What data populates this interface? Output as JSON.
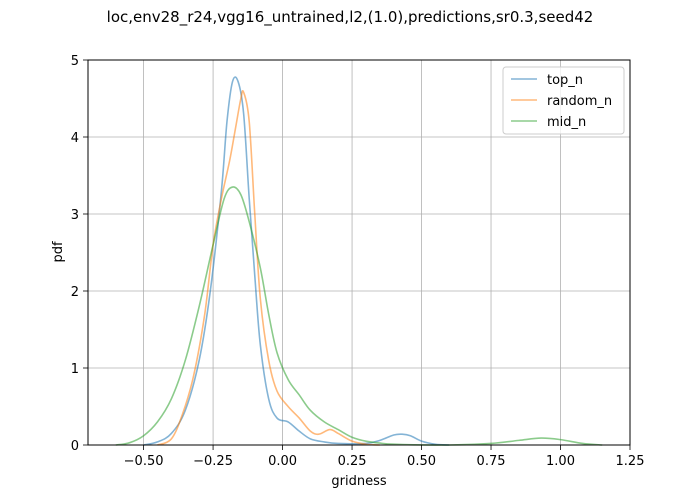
{
  "chart_data": {
    "type": "line",
    "title": "loc,env28_r24,vgg16_untrained,l2,(1.0),predictions,sr0.3,seed42",
    "xlabel": "gridness",
    "ylabel": "pdf",
    "xlim": [
      -0.7,
      1.25
    ],
    "ylim": [
      0,
      5
    ],
    "xticks": [
      -0.5,
      -0.25,
      0.0,
      0.25,
      0.5,
      0.75,
      1.0,
      1.25
    ],
    "xtick_labels": [
      "−0.50",
      "−0.25",
      "0.00",
      "0.25",
      "0.50",
      "0.75",
      "1.00",
      "1.25"
    ],
    "yticks": [
      0,
      1,
      2,
      3,
      4,
      5
    ],
    "ytick_labels": [
      "0",
      "1",
      "2",
      "3",
      "4",
      "5"
    ],
    "grid": true,
    "legend_position": "top-right",
    "series": [
      {
        "name": "top_n",
        "color": "#1f77b4",
        "points": [
          [
            -0.5,
            0.0
          ],
          [
            -0.45,
            0.04
          ],
          [
            -0.4,
            0.15
          ],
          [
            -0.35,
            0.45
          ],
          [
            -0.3,
            1.1
          ],
          [
            -0.26,
            2.0
          ],
          [
            -0.22,
            3.3
          ],
          [
            -0.2,
            4.2
          ],
          [
            -0.18,
            4.72
          ],
          [
            -0.16,
            4.72
          ],
          [
            -0.14,
            4.3
          ],
          [
            -0.12,
            3.2
          ],
          [
            -0.1,
            2.2
          ],
          [
            -0.08,
            1.3
          ],
          [
            -0.05,
            0.6
          ],
          [
            -0.02,
            0.35
          ],
          [
            0.02,
            0.3
          ],
          [
            0.06,
            0.18
          ],
          [
            0.1,
            0.08
          ],
          [
            0.15,
            0.04
          ],
          [
            0.2,
            0.02
          ],
          [
            0.3,
            0.02
          ],
          [
            0.35,
            0.06
          ],
          [
            0.4,
            0.13
          ],
          [
            0.43,
            0.14
          ],
          [
            0.46,
            0.12
          ],
          [
            0.5,
            0.05
          ],
          [
            0.55,
            0.01
          ],
          [
            0.6,
            0.0
          ]
        ]
      },
      {
        "name": "random_n",
        "color": "#ff7f0e",
        "points": [
          [
            -0.45,
            0.0
          ],
          [
            -0.4,
            0.08
          ],
          [
            -0.36,
            0.4
          ],
          [
            -0.32,
            0.9
          ],
          [
            -0.28,
            1.7
          ],
          [
            -0.25,
            2.6
          ],
          [
            -0.22,
            3.2
          ],
          [
            -0.19,
            3.7
          ],
          [
            -0.17,
            4.1
          ],
          [
            -0.15,
            4.5
          ],
          [
            -0.14,
            4.58
          ],
          [
            -0.12,
            4.2
          ],
          [
            -0.1,
            3.0
          ],
          [
            -0.08,
            1.9
          ],
          [
            -0.05,
            1.1
          ],
          [
            -0.02,
            0.7
          ],
          [
            0.02,
            0.5
          ],
          [
            0.06,
            0.35
          ],
          [
            0.1,
            0.18
          ],
          [
            0.13,
            0.14
          ],
          [
            0.17,
            0.2
          ],
          [
            0.2,
            0.15
          ],
          [
            0.25,
            0.05
          ],
          [
            0.3,
            0.01
          ],
          [
            0.35,
            0.0
          ]
        ]
      },
      {
        "name": "mid_n",
        "color": "#2ca02c",
        "points": [
          [
            -0.6,
            0.0
          ],
          [
            -0.55,
            0.03
          ],
          [
            -0.5,
            0.12
          ],
          [
            -0.45,
            0.3
          ],
          [
            -0.4,
            0.6
          ],
          [
            -0.35,
            1.1
          ],
          [
            -0.3,
            1.8
          ],
          [
            -0.25,
            2.6
          ],
          [
            -0.21,
            3.2
          ],
          [
            -0.18,
            3.35
          ],
          [
            -0.15,
            3.25
          ],
          [
            -0.12,
            2.9
          ],
          [
            -0.08,
            2.3
          ],
          [
            -0.05,
            1.7
          ],
          [
            -0.02,
            1.2
          ],
          [
            0.02,
            0.85
          ],
          [
            0.06,
            0.65
          ],
          [
            0.1,
            0.45
          ],
          [
            0.15,
            0.3
          ],
          [
            0.2,
            0.2
          ],
          [
            0.25,
            0.1
          ],
          [
            0.3,
            0.05
          ],
          [
            0.4,
            0.01
          ],
          [
            0.6,
            0.0
          ],
          [
            0.75,
            0.02
          ],
          [
            0.85,
            0.06
          ],
          [
            0.93,
            0.09
          ],
          [
            1.0,
            0.07
          ],
          [
            1.08,
            0.02
          ],
          [
            1.15,
            0.0
          ]
        ]
      }
    ]
  }
}
